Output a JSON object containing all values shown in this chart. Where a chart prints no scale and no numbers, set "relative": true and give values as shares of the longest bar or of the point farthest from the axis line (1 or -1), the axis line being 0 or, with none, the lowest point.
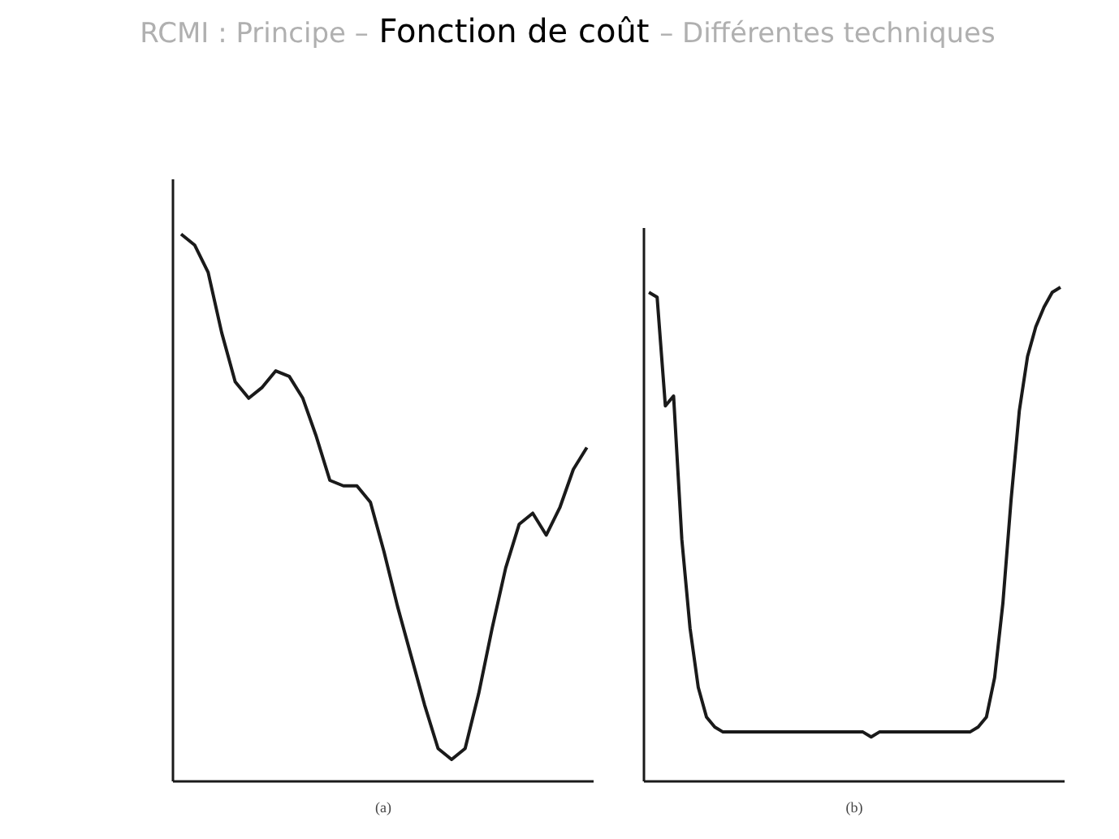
{
  "chart_data": [
    {
      "type": "line",
      "title": "RCMI : Principe – Fonction de coût – Différentes techniques",
      "xlabel": "(a)",
      "relative": true,
      "grid": false,
      "marker": "none",
      "line_style": "solid",
      "categories": [
        null,
        null,
        null,
        null,
        null,
        null,
        null,
        null,
        null,
        null,
        null,
        null,
        null,
        null,
        null,
        null,
        null,
        null,
        null,
        null,
        null,
        null,
        null,
        null,
        null,
        null,
        null,
        null,
        null,
        null,
        null
      ],
      "series": [
        {
          "color": "#1a1a1a",
          "values": [
            1.0,
            0.98,
            0.93,
            0.82,
            0.73,
            0.7,
            0.72,
            0.75,
            0.74,
            0.7,
            0.63,
            0.55,
            0.54,
            0.54,
            0.51,
            0.42,
            0.32,
            0.23,
            0.14,
            0.06,
            0.04,
            0.06,
            0.16,
            0.28,
            0.39,
            0.47,
            0.49,
            0.45,
            0.5,
            0.57,
            0.61
          ]
        }
      ]
    },
    {
      "type": "line",
      "xlabel": "(b)",
      "relative": true,
      "grid": false,
      "marker": "none",
      "line_style": "solid",
      "categories": [
        null,
        null,
        null,
        null,
        null,
        null,
        null,
        null,
        null,
        null,
        null,
        null,
        null,
        null,
        null,
        null,
        null,
        null,
        null,
        null,
        null,
        null,
        null,
        null,
        null,
        null,
        null,
        null,
        null,
        null,
        null,
        null,
        null,
        null,
        null,
        null,
        null,
        null,
        null,
        null,
        null,
        null,
        null,
        null,
        null,
        null,
        null,
        null,
        null,
        null,
        null
      ],
      "series": [
        {
          "color": "#1a1a1a",
          "values": [
            0.99,
            0.98,
            0.76,
            0.78,
            0.49,
            0.31,
            0.19,
            0.13,
            0.11,
            0.1,
            0.1,
            0.1,
            0.1,
            0.1,
            0.1,
            0.1,
            0.1,
            0.1,
            0.1,
            0.1,
            0.1,
            0.1,
            0.1,
            0.1,
            0.1,
            0.1,
            0.1,
            0.09,
            0.1,
            0.1,
            0.1,
            0.1,
            0.1,
            0.1,
            0.1,
            0.1,
            0.1,
            0.1,
            0.1,
            0.1,
            0.11,
            0.13,
            0.21,
            0.36,
            0.57,
            0.75,
            0.86,
            0.92,
            0.96,
            0.99,
            1.0
          ]
        }
      ]
    }
  ]
}
